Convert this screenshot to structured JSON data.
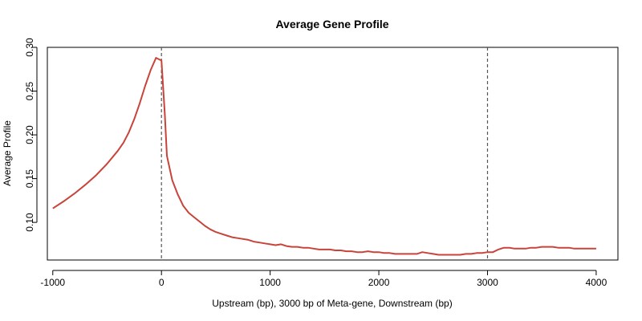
{
  "chart_data": {
    "type": "line",
    "title": "Average Gene Profile",
    "xlabel": "Upstream (bp), 3000 bp of Meta-gene, Downstream (bp)",
    "ylabel": "Average Profile",
    "xlim": [
      -1050,
      4200
    ],
    "ylim": [
      0.057,
      0.3
    ],
    "x_ticks": [
      -1000,
      0,
      1000,
      2000,
      3000,
      4000
    ],
    "x_tick_labels": [
      "-1000",
      "0",
      "1000",
      "2000",
      "3000",
      "4000"
    ],
    "y_ticks": [
      0.1,
      0.15,
      0.2,
      0.25,
      0.3
    ],
    "y_tick_labels": [
      "0.10",
      "0.15",
      "0.20",
      "0.25",
      "0.30"
    ],
    "vlines": [
      0,
      3000
    ],
    "grid": false,
    "colors": {
      "line": "#c8443a",
      "axis": "#000000",
      "vline": "#555555"
    },
    "series": [
      {
        "x": [
          -1000,
          -900,
          -800,
          -700,
          -600,
          -500,
          -400,
          -350,
          -300,
          -250,
          -200,
          -150,
          -100,
          -50,
          0,
          30,
          50,
          100,
          150,
          200,
          250,
          300,
          350,
          400,
          450,
          500,
          550,
          600,
          650,
          700,
          750,
          800,
          850,
          900,
          950,
          1000,
          1050,
          1100,
          1150,
          1200,
          1250,
          1300,
          1350,
          1400,
          1450,
          1500,
          1550,
          1600,
          1650,
          1700,
          1750,
          1800,
          1850,
          1900,
          1950,
          2000,
          2050,
          2100,
          2150,
          2200,
          2250,
          2300,
          2350,
          2400,
          2450,
          2500,
          2550,
          2600,
          2650,
          2700,
          2750,
          2800,
          2850,
          2900,
          2950,
          3000,
          3050,
          3100,
          3150,
          3200,
          3250,
          3300,
          3350,
          3400,
          3450,
          3500,
          3550,
          3600,
          3650,
          3700,
          3750,
          3800,
          3850,
          3900,
          3950,
          4000
        ],
        "values": [
          0.116,
          0.124,
          0.133,
          0.143,
          0.154,
          0.167,
          0.182,
          0.191,
          0.203,
          0.218,
          0.236,
          0.256,
          0.274,
          0.288,
          0.285,
          0.225,
          0.176,
          0.148,
          0.132,
          0.119,
          0.111,
          0.106,
          0.101,
          0.096,
          0.092,
          0.089,
          0.087,
          0.085,
          0.083,
          0.082,
          0.081,
          0.08,
          0.078,
          0.077,
          0.076,
          0.075,
          0.074,
          0.075,
          0.073,
          0.072,
          0.072,
          0.071,
          0.071,
          0.07,
          0.069,
          0.069,
          0.069,
          0.068,
          0.068,
          0.067,
          0.067,
          0.066,
          0.066,
          0.067,
          0.066,
          0.066,
          0.065,
          0.065,
          0.064,
          0.064,
          0.064,
          0.064,
          0.064,
          0.066,
          0.065,
          0.064,
          0.063,
          0.063,
          0.063,
          0.063,
          0.063,
          0.064,
          0.064,
          0.065,
          0.065,
          0.066,
          0.066,
          0.069,
          0.071,
          0.071,
          0.07,
          0.07,
          0.07,
          0.071,
          0.071,
          0.072,
          0.072,
          0.072,
          0.071,
          0.071,
          0.071,
          0.07,
          0.07,
          0.07,
          0.07,
          0.07
        ]
      }
    ]
  }
}
